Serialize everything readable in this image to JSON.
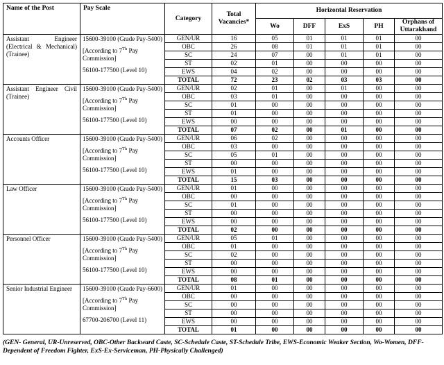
{
  "header": {
    "name_of_post": "Name of the Post",
    "pay_scale": "Pay Scale",
    "category": "Category",
    "total_vacancies": "Total Vacancies*",
    "horizontal_reservation": "Horizontal Reservation",
    "sub_columns": [
      "Wo",
      "DFF",
      "ExS",
      "PH",
      "Orphans of Uttarakhand"
    ]
  },
  "posts": [
    {
      "name": "Assistant Engineer (Electrical & Mechanical) (Trainee)",
      "pay_scale": [
        "15600-39100 (Grade Pay-5400)",
        "[According to 7^{Th} Pay Commission]",
        "56100-177500 (Level 10)"
      ],
      "rows": [
        {
          "category": "GEN/UR",
          "values": [
            "16",
            "05",
            "01",
            "01",
            "01",
            "00"
          ]
        },
        {
          "category": "OBC",
          "values": [
            "26",
            "08",
            "01",
            "01",
            "01",
            "00"
          ]
        },
        {
          "category": "SC",
          "values": [
            "24",
            "07",
            "00",
            "01",
            "01",
            "00"
          ]
        },
        {
          "category": "ST",
          "values": [
            "02",
            "01",
            "00",
            "00",
            "00",
            "00"
          ]
        },
        {
          "category": "EWS",
          "values": [
            "04",
            "02",
            "00",
            "00",
            "00",
            "00"
          ]
        },
        {
          "category": "TOTAL",
          "values": [
            "72",
            "23",
            "02",
            "03",
            "03",
            "00"
          ]
        }
      ]
    },
    {
      "name": "Assistant Engineer Civil (Trainee)",
      "pay_scale": [
        "15600-39100 (Grade Pay-5400)",
        "[According to 7^{Th} Pay Commission]",
        "56100-177500 (Level 10)"
      ],
      "rows": [
        {
          "category": "GEN/UR",
          "values": [
            "02",
            "01",
            "00",
            "01",
            "00",
            "00"
          ]
        },
        {
          "category": "OBC",
          "values": [
            "03",
            "01",
            "00",
            "00",
            "00",
            "00"
          ]
        },
        {
          "category": "SC",
          "values": [
            "01",
            "00",
            "00",
            "00",
            "00",
            "00"
          ]
        },
        {
          "category": "ST",
          "values": [
            "01",
            "00",
            "00",
            "00",
            "00",
            "00"
          ]
        },
        {
          "category": "EWS",
          "values": [
            "00",
            "00",
            "00",
            "00",
            "00",
            "00"
          ]
        },
        {
          "category": "TOTAL",
          "values": [
            "07",
            "02",
            "00",
            "01",
            "00",
            "00"
          ]
        }
      ]
    },
    {
      "name": "Accounts Officer",
      "pay_scale": [
        "15600-39100 (Grade Pay-5400)",
        "[According to 7^{Th} Pay Commission]",
        "56100-177500 (Level 10)"
      ],
      "rows": [
        {
          "category": "GEN/UR",
          "values": [
            "06",
            "02",
            "00",
            "00",
            "00",
            "00"
          ]
        },
        {
          "category": "OBC",
          "values": [
            "03",
            "00",
            "00",
            "00",
            "00",
            "00"
          ]
        },
        {
          "category": "SC",
          "values": [
            "05",
            "01",
            "00",
            "00",
            "00",
            "00"
          ]
        },
        {
          "category": "ST",
          "values": [
            "00",
            "00",
            "00",
            "00",
            "00",
            "00"
          ]
        },
        {
          "category": "EWS",
          "values": [
            "01",
            "00",
            "00",
            "00",
            "00",
            "00"
          ]
        },
        {
          "category": "TOTAL",
          "values": [
            "15",
            "03",
            "00",
            "00",
            "00",
            "00"
          ]
        }
      ]
    },
    {
      "name": "Law Officer",
      "pay_scale": [
        "15600-39100 (Grade Pay-5400)",
        "[According to 7^{Th} Pay Commission]",
        "56100-177500 (Level 10)"
      ],
      "rows": [
        {
          "category": "GEN/UR",
          "values": [
            "01",
            "00",
            "00",
            "00",
            "00",
            "00"
          ]
        },
        {
          "category": "OBC",
          "values": [
            "00",
            "00",
            "00",
            "00",
            "00",
            "00"
          ]
        },
        {
          "category": "SC",
          "values": [
            "01",
            "00",
            "00",
            "00",
            "00",
            "00"
          ]
        },
        {
          "category": "ST",
          "values": [
            "00",
            "00",
            "00",
            "00",
            "00",
            "00"
          ]
        },
        {
          "category": "EWS",
          "values": [
            "00",
            "00",
            "00",
            "00",
            "00",
            "00"
          ]
        },
        {
          "category": "TOTAL",
          "values": [
            "02",
            "00",
            "00",
            "00",
            "00",
            "00"
          ]
        }
      ]
    },
    {
      "name": "Personnel Officer",
      "pay_scale": [
        "15600-39100 (Grade Pay-5400)",
        "[According to 7^{Th} Pay Commission]",
        "56100-177500 (Level 10)"
      ],
      "rows": [
        {
          "category": "GEN/UR",
          "values": [
            "05",
            "01",
            "00",
            "00",
            "00",
            "00"
          ]
        },
        {
          "category": "OBC",
          "values": [
            "01",
            "00",
            "00",
            "00",
            "00",
            "00"
          ]
        },
        {
          "category": "SC",
          "values": [
            "02",
            "00",
            "00",
            "00",
            "00",
            "00"
          ]
        },
        {
          "category": "ST",
          "values": [
            "00",
            "00",
            "00",
            "00",
            "00",
            "00"
          ]
        },
        {
          "category": "EWS",
          "values": [
            "00",
            "00",
            "00",
            "00",
            "00",
            "00"
          ]
        },
        {
          "category": "TOTAL",
          "values": [
            "08",
            "01",
            "00",
            "00",
            "00",
            "00"
          ]
        }
      ]
    },
    {
      "name": "Senior Industrial Engineer",
      "pay_scale": [
        "15600-39100 (Grade Pay-6600)",
        "[According to 7^{Th} Pay Commission]",
        "67700-206700 (Level 11)"
      ],
      "rows": [
        {
          "category": "GEN/UR",
          "values": [
            "01",
            "00",
            "00",
            "00",
            "00",
            "00"
          ]
        },
        {
          "category": "OBC",
          "values": [
            "00",
            "00",
            "00",
            "00",
            "00",
            "00"
          ]
        },
        {
          "category": "SC",
          "values": [
            "00",
            "00",
            "00",
            "00",
            "00",
            "00"
          ]
        },
        {
          "category": "ST",
          "values": [
            "00",
            "00",
            "00",
            "00",
            "00",
            "00"
          ]
        },
        {
          "category": "EWS",
          "values": [
            "00",
            "00",
            "00",
            "00",
            "00",
            "00"
          ]
        },
        {
          "category": "TOTAL",
          "values": [
            "01",
            "00",
            "00",
            "00",
            "00",
            "00"
          ]
        }
      ]
    }
  ],
  "footnote": "(GEN- General, UR-Unreserved, OBC-Other Backward Caste, SC-Schedule Caste, ST-Schedule Tribe, EWS-Economic Weaker Section, Wo-Women, DFF-Dependent of Freedom Fighter, ExS-Ex-Serviceman, PH-Physically Challenged)"
}
